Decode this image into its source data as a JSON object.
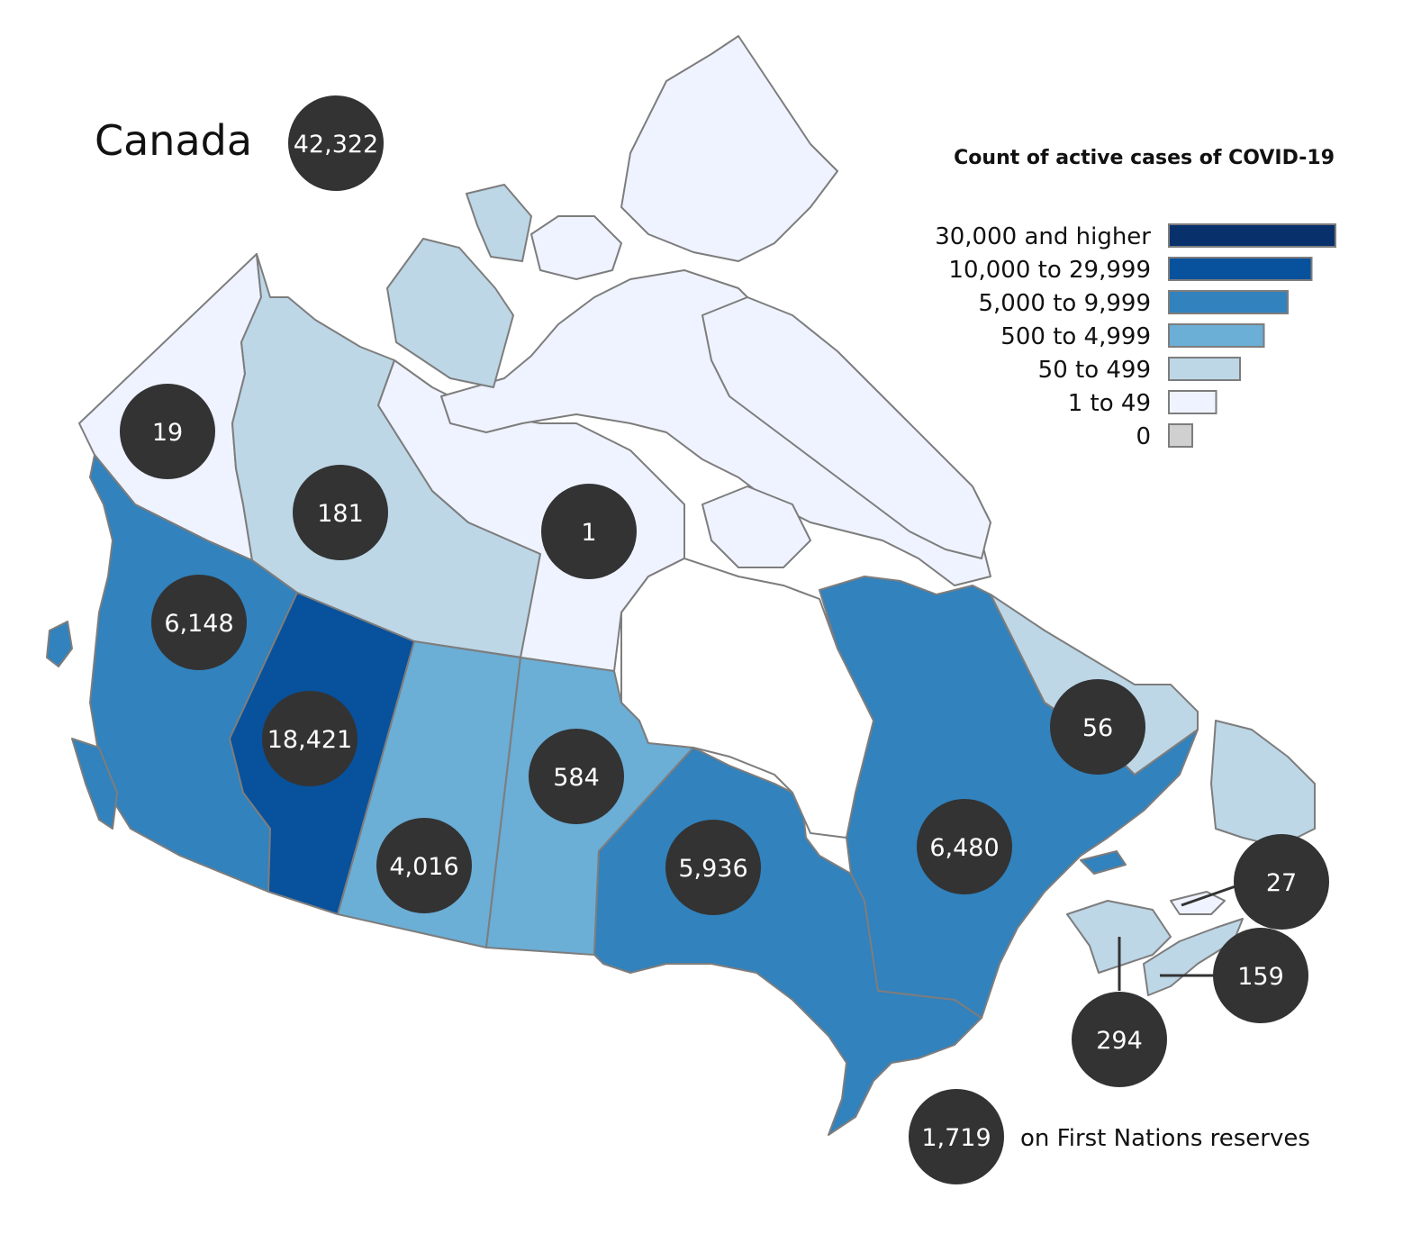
{
  "title": "Canada",
  "national_total": "42,322",
  "legend": {
    "title": "Count of active cases of COVID-19",
    "items": [
      {
        "label": "30,000 and higher",
        "color": "#08306b",
        "rank": 6
      },
      {
        "label": "10,000 to 29,999",
        "color": "#08519c",
        "rank": 5
      },
      {
        "label": "5,000 to 9,999",
        "color": "#3182bd",
        "rank": 4
      },
      {
        "label": "500 to 4,999",
        "color": "#6baed6",
        "rank": 3
      },
      {
        "label": "50 to 499",
        "color": "#bdd7e7",
        "rank": 2
      },
      {
        "label": "1 to 49",
        "color": "#eff3ff",
        "rank": 1
      },
      {
        "label": "0",
        "color": "#d0d0d0",
        "rank": 0
      }
    ]
  },
  "regions": [
    {
      "id": "yt",
      "count": "19"
    },
    {
      "id": "nt",
      "count": "181"
    },
    {
      "id": "nu",
      "count": "1"
    },
    {
      "id": "bc",
      "count": "6,148"
    },
    {
      "id": "ab",
      "count": "18,421"
    },
    {
      "id": "sk",
      "count": "4,016"
    },
    {
      "id": "mb",
      "count": "584"
    },
    {
      "id": "on",
      "count": "5,936"
    },
    {
      "id": "qc",
      "count": "6,480"
    },
    {
      "id": "nl",
      "count": "56"
    },
    {
      "id": "pe",
      "count": "27"
    },
    {
      "id": "ns",
      "count": "159"
    },
    {
      "id": "nb",
      "count": "294"
    }
  ],
  "first_nations": {
    "count": "1,719",
    "label": "on First Nations reserves"
  }
}
